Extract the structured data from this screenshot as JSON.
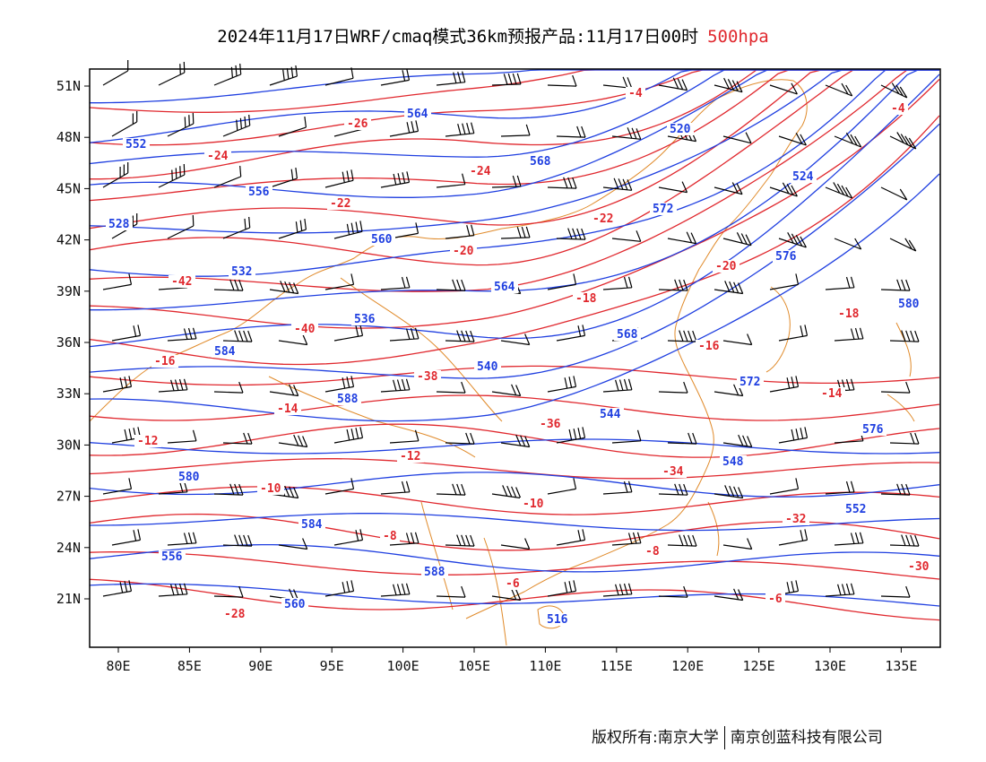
{
  "title": {
    "main": "2024年11月17日WRF/cmaq模式36km预报产品:11月17日00时",
    "level": "500hpa"
  },
  "axes": {
    "lat_labels": [
      "51N",
      "48N",
      "45N",
      "42N",
      "39N",
      "36N",
      "33N",
      "30N",
      "27N",
      "24N",
      "21N"
    ],
    "lon_labels": [
      "80E",
      "85E",
      "90E",
      "95E",
      "100E",
      "105E",
      "110E",
      "115E",
      "120E",
      "125E",
      "130E",
      "135E"
    ]
  },
  "colors": {
    "height_contour": "#1f3fe0",
    "temperature_contour": "#e0282e",
    "boundary": "#e08a2a",
    "wind_barb": "#000000"
  },
  "map_data": {
    "height_labels": [
      "552",
      "556",
      "560",
      "564",
      "568",
      "572",
      "576",
      "580",
      "584",
      "588",
      "516",
      "520",
      "524",
      "528",
      "532",
      "536",
      "540",
      "544",
      "548",
      "552",
      "556",
      "560",
      "564",
      "568",
      "572",
      "576",
      "580",
      "584",
      "588"
    ],
    "temperature_labels": [
      "-42",
      "-40",
      "-38",
      "-36",
      "-34",
      "-32",
      "-30",
      "-28",
      "-26",
      "-24",
      "-22",
      "-20",
      "-18",
      "-16",
      "-14",
      "-12",
      "-10",
      "-8",
      "-6",
      "-4",
      "-24",
      "-22",
      "-20",
      "-18",
      "-16",
      "-14",
      "-12",
      "-10",
      "-8",
      "-6",
      "-4"
    ]
  },
  "footer": {
    "left": "版权所有:南京大学",
    "right": "南京创蓝科技有限公司"
  }
}
